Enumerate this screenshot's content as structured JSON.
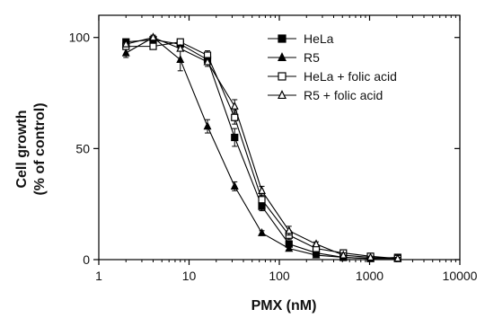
{
  "chart_data": {
    "type": "line",
    "xlabel": "PMX (nM)",
    "ylabel_line1": "Cell growth",
    "ylabel_line2": "(% of control)",
    "x_scale": "log",
    "xlim": [
      1,
      10000
    ],
    "ylim": [
      0,
      110
    ],
    "x_ticks": [
      1,
      10,
      100,
      1000,
      10000
    ],
    "x_tick_labels": [
      "1",
      "10",
      "100",
      "1000",
      "10000"
    ],
    "y_ticks": [
      0,
      50,
      100
    ],
    "y_tick_labels": [
      "0",
      "50",
      "100"
    ],
    "grid": false,
    "legend_position": "top-right",
    "x": [
      2,
      4,
      8,
      16,
      32,
      64,
      128,
      256,
      512,
      1024,
      2048
    ],
    "series": [
      {
        "name": "HeLa",
        "marker": "filled-square",
        "values": [
          98,
          99,
          97,
          90,
          55,
          24,
          7,
          3,
          1,
          0.5,
          1
        ],
        "errors": [
          1,
          1,
          1,
          2,
          4,
          2,
          1,
          1,
          0.5,
          0.5,
          0.5
        ]
      },
      {
        "name": "R5",
        "marker": "filled-triangle",
        "values": [
          93,
          100,
          90,
          60,
          33,
          12,
          5,
          2,
          1,
          0.5,
          0.5
        ],
        "errors": [
          2,
          1,
          5,
          3,
          2,
          1,
          1,
          0.5,
          0.5,
          0.5,
          0.5
        ]
      },
      {
        "name": "HeLa + folic acid",
        "marker": "open-square",
        "values": [
          96,
          96,
          98,
          92,
          64,
          27,
          11,
          5,
          3,
          1.5,
          0.5
        ],
        "errors": [
          1,
          1,
          1,
          2,
          3,
          3,
          2,
          1,
          1,
          0.5,
          0.5
        ]
      },
      {
        "name": "R5 + folic acid",
        "marker": "open-triangle",
        "values": [
          97,
          100,
          95,
          89,
          69,
          31,
          13,
          7,
          2,
          1,
          0.5
        ],
        "errors": [
          1,
          1,
          1,
          2,
          3,
          2,
          2,
          1,
          1,
          0.5,
          0.5
        ]
      }
    ]
  }
}
